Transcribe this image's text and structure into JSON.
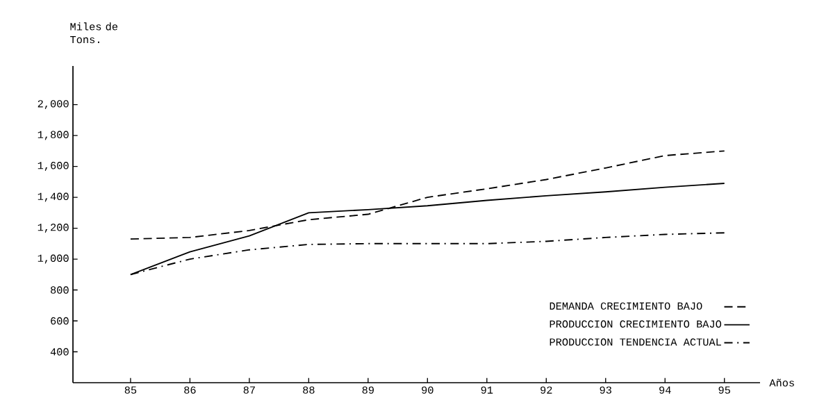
{
  "chart_data": {
    "type": "line",
    "ylabel": "Miles de Tons.",
    "xlabel": "Años",
    "x": [
      85,
      86,
      87,
      88,
      89,
      90,
      91,
      92,
      93,
      94,
      95
    ],
    "series": [
      {
        "name": "DEMANDA CRECIMIENTO BAJO",
        "color": "#000000",
        "line_style": "dashed",
        "values": [
          1130,
          1140,
          1185,
          1255,
          1290,
          1400,
          1455,
          1515,
          1590,
          1670,
          1700
        ]
      },
      {
        "name": "PRODUCCION CRECIMIENTO BAJO",
        "color": "#000000",
        "line_style": "solid",
        "values": [
          900,
          1047,
          1150,
          1300,
          1320,
          1345,
          1380,
          1410,
          1435,
          1465,
          1490
        ]
      },
      {
        "name": "PRODUCCION TENDENCIA ACTUAL",
        "color": "#000000",
        "line_style": "dashdot",
        "values": [
          900,
          1000,
          1060,
          1095,
          1100,
          1100,
          1100,
          1115,
          1140,
          1160,
          1170
        ]
      }
    ],
    "xlim": [
      84.03,
      95.6
    ],
    "ylim": [
      200,
      2250
    ],
    "xticks": [
      85,
      86,
      87,
      88,
      89,
      90,
      91,
      92,
      93,
      94,
      95
    ],
    "yticks": [
      400,
      600,
      800,
      {
        "value": 1000,
        "label": "1,000"
      },
      {
        "value": 1200,
        "label": "1,200"
      },
      {
        "value": 1400,
        "label": "1,400"
      },
      {
        "value": 1600,
        "label": "1,600"
      },
      {
        "value": 1800,
        "label": "1,800"
      },
      {
        "value": 2000,
        "label": "2,000"
      }
    ],
    "legend": "bottom right",
    "grid": false
  }
}
